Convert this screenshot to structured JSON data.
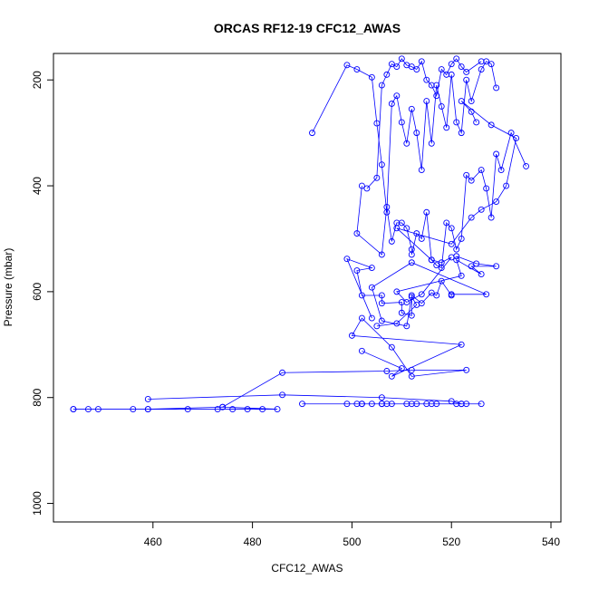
{
  "chart_data": {
    "type": "line",
    "title": "ORCAS RF12-19 CFC12_AWAS",
    "xlabel": "CFC12_AWAS",
    "ylabel": "Pressure (mbar)",
    "xlim": [
      440,
      542
    ],
    "ylim": [
      1035,
      150
    ],
    "x_ticks": [
      460,
      480,
      500,
      520,
      540
    ],
    "y_ticks": [
      200,
      400,
      600,
      800,
      1000
    ],
    "y_reversed": true,
    "grid": false,
    "marker": "open-circle",
    "color": "#0000ff",
    "series": [
      {
        "x": [
          444,
          447,
          449,
          456,
          459,
          467,
          473,
          476,
          479,
          482,
          485,
          474,
          459,
          444
        ],
        "y": [
          822,
          822,
          822,
          822,
          822,
          822,
          822,
          822,
          822,
          822,
          822,
          818,
          822,
          822
        ]
      },
      {
        "x": [
          459,
          486,
          506,
          520,
          522
        ],
        "y": [
          803,
          795,
          800,
          807,
          812
        ]
      },
      {
        "x": [
          490,
          499,
          501,
          502,
          504,
          506,
          507,
          508,
          511,
          512,
          513,
          515,
          516,
          517,
          521,
          522,
          523,
          526,
          502,
          506
        ],
        "y": [
          812,
          812,
          812,
          812,
          812,
          812,
          812,
          812,
          812,
          812,
          812,
          812,
          812,
          812,
          812,
          812,
          812,
          812,
          812,
          812
        ]
      },
      {
        "x": [
          474,
          486,
          507,
          512,
          523,
          512,
          508,
          502,
          500,
          522,
          508,
          510,
          502
        ],
        "y": [
          818,
          753,
          750,
          748,
          748,
          760,
          705,
          650,
          683,
          700,
          760,
          745,
          712
        ]
      },
      {
        "x": [
          504,
          499,
          504,
          501,
          502,
          506,
          506,
          510,
          510,
          512,
          512,
          514,
          516,
          517,
          518,
          520,
          520,
          527,
          512,
          504,
          506,
          511,
          512,
          513,
          509,
          505
        ],
        "y": [
          650,
          538,
          555,
          560,
          607,
          607,
          622,
          620,
          640,
          645,
          607,
          622,
          602,
          607,
          580,
          607,
          605,
          605,
          545,
          592,
          655,
          665,
          610,
          625,
          660,
          665
        ]
      },
      {
        "x": [
          521,
          525,
          529,
          524,
          526,
          521,
          522,
          509,
          511,
          514,
          520,
          518,
          516,
          509,
          520,
          524,
          526,
          529,
          531,
          533,
          528,
          522,
          524,
          525
        ],
        "y": [
          533,
          547,
          552,
          552,
          567,
          540,
          570,
          600,
          620,
          605,
          535,
          545,
          540,
          480,
          510,
          460,
          445,
          430,
          400,
          310,
          285,
          240,
          260,
          280
        ]
      },
      {
        "x": [
          502,
          501,
          506,
          507,
          508,
          509,
          510,
          511,
          512,
          512,
          513,
          514,
          515,
          516,
          517,
          518,
          519,
          520,
          521,
          522,
          523,
          524,
          526,
          527,
          528,
          529,
          530,
          532,
          535
        ],
        "y": [
          400,
          490,
          530,
          440,
          505,
          470,
          470,
          480,
          520,
          530,
          490,
          500,
          450,
          540,
          550,
          555,
          470,
          480,
          520,
          500,
          380,
          390,
          370,
          405,
          460,
          340,
          370,
          300,
          363
        ]
      },
      {
        "x": [
          492,
          499,
          501,
          504,
          505,
          506,
          507,
          508,
          509,
          510,
          511,
          512,
          513,
          514,
          515,
          516,
          517,
          518,
          519,
          520,
          521,
          522,
          523,
          524,
          526,
          527,
          528,
          529
        ],
        "y": [
          300,
          172,
          180,
          195,
          282,
          360,
          450,
          245,
          230,
          280,
          320,
          255,
          300,
          370,
          240,
          320,
          210,
          250,
          290,
          190,
          280,
          300,
          200,
          240,
          180,
          165,
          170,
          215
        ]
      },
      {
        "x": [
          503,
          505,
          506,
          507,
          508,
          509,
          510,
          511,
          512,
          513,
          514,
          515,
          516,
          517,
          518,
          519,
          520,
          521,
          522,
          523,
          526
        ],
        "y": [
          405,
          385,
          210,
          190,
          170,
          175,
          160,
          172,
          175,
          180,
          165,
          200,
          210,
          230,
          180,
          190,
          170,
          160,
          175,
          185,
          165
        ]
      }
    ]
  }
}
